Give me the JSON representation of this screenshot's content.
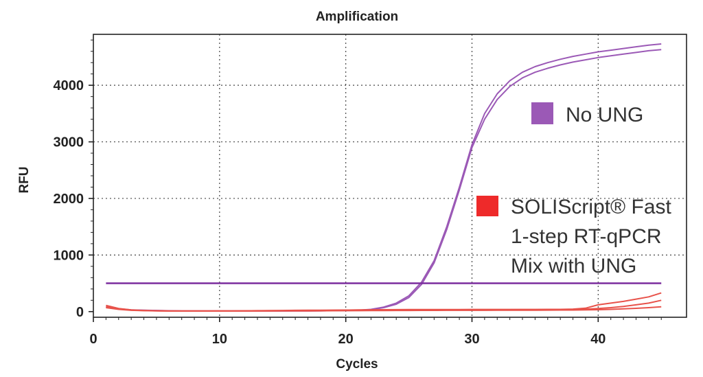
{
  "chart_data": {
    "type": "line",
    "title": "Amplification",
    "xlabel": "Cycles",
    "ylabel": "RFU",
    "xlim": [
      0,
      47
    ],
    "ylim": [
      -100,
      4900
    ],
    "xticks": [
      0,
      10,
      20,
      30,
      40
    ],
    "yticks": [
      0,
      1000,
      2000,
      3000,
      4000
    ],
    "grid": true,
    "threshold": {
      "value": 500,
      "color": "#7b2d9e"
    },
    "series": [
      {
        "name": "No UNG",
        "group": "purple",
        "color": "#9b59b6",
        "x": [
          1,
          2,
          3,
          4,
          5,
          6,
          7,
          8,
          9,
          10,
          11,
          12,
          13,
          14,
          15,
          16,
          17,
          18,
          19,
          20,
          21,
          22,
          23,
          24,
          25,
          26,
          27,
          28,
          29,
          30,
          31,
          32,
          33,
          34,
          35,
          36,
          37,
          38,
          39,
          40,
          41,
          42,
          43,
          44,
          45
        ],
        "y": [
          90,
          50,
          30,
          25,
          20,
          15,
          10,
          10,
          10,
          10,
          10,
          10,
          10,
          10,
          10,
          12,
          12,
          14,
          16,
          20,
          25,
          40,
          80,
          150,
          280,
          520,
          900,
          1500,
          2200,
          2950,
          3500,
          3850,
          4080,
          4230,
          4330,
          4400,
          4460,
          4510,
          4550,
          4590,
          4620,
          4650,
          4680,
          4710,
          4730
        ]
      },
      {
        "name": "No UNG",
        "group": "purple",
        "color": "#9b59b6",
        "x": [
          1,
          2,
          3,
          4,
          5,
          6,
          7,
          8,
          9,
          10,
          11,
          12,
          13,
          14,
          15,
          16,
          17,
          18,
          19,
          20,
          21,
          22,
          23,
          24,
          25,
          26,
          27,
          28,
          29,
          30,
          31,
          32,
          33,
          34,
          35,
          36,
          37,
          38,
          39,
          40,
          41,
          42,
          43,
          44,
          45
        ],
        "y": [
          80,
          45,
          28,
          22,
          18,
          14,
          10,
          10,
          10,
          10,
          10,
          10,
          10,
          10,
          10,
          12,
          12,
          14,
          16,
          18,
          22,
          35,
          70,
          130,
          250,
          480,
          860,
          1450,
          2150,
          2900,
          3400,
          3750,
          3980,
          4130,
          4230,
          4300,
          4360,
          4410,
          4450,
          4490,
          4520,
          4550,
          4580,
          4610,
          4630
        ]
      },
      {
        "name": "SOLIScript® Fast 1-step RT-qPCR Mix with UNG",
        "group": "red",
        "color": "#e8524a",
        "x": [
          1,
          2,
          3,
          4,
          5,
          6,
          7,
          8,
          9,
          10,
          11,
          12,
          13,
          14,
          15,
          16,
          17,
          18,
          19,
          20,
          21,
          22,
          23,
          24,
          25,
          26,
          27,
          28,
          29,
          30,
          31,
          32,
          33,
          34,
          35,
          36,
          37,
          38,
          39,
          40,
          41,
          42,
          43,
          44,
          45
        ],
        "y": [
          110,
          55,
          30,
          20,
          15,
          10,
          10,
          10,
          10,
          12,
          12,
          14,
          16,
          18,
          20,
          22,
          24,
          25,
          26,
          28,
          30,
          32,
          34,
          35,
          36,
          36,
          37,
          37,
          37,
          38,
          38,
          38,
          38,
          38,
          38,
          39,
          40,
          45,
          60,
          120,
          150,
          180,
          220,
          260,
          330
        ]
      },
      {
        "name": "SOLIScript® Fast 1-step RT-qPCR Mix with UNG",
        "group": "red",
        "color": "#e8524a",
        "x": [
          1,
          2,
          3,
          4,
          5,
          6,
          7,
          8,
          9,
          10,
          11,
          12,
          13,
          14,
          15,
          16,
          17,
          18,
          19,
          20,
          21,
          22,
          23,
          24,
          25,
          26,
          27,
          28,
          29,
          30,
          31,
          32,
          33,
          34,
          35,
          36,
          37,
          38,
          39,
          40,
          41,
          42,
          43,
          44,
          45
        ],
        "y": [
          85,
          48,
          26,
          18,
          14,
          10,
          10,
          10,
          10,
          11,
          11,
          12,
          13,
          14,
          15,
          16,
          18,
          20,
          22,
          24,
          26,
          28,
          30,
          31,
          32,
          32,
          33,
          33,
          33,
          34,
          34,
          34,
          34,
          35,
          35,
          35,
          36,
          38,
          42,
          55,
          70,
          90,
          120,
          150,
          200
        ]
      },
      {
        "name": "SOLIScript® Fast 1-step RT-qPCR Mix with UNG",
        "group": "red",
        "color": "#e8524a",
        "x": [
          1,
          2,
          3,
          4,
          5,
          6,
          7,
          8,
          9,
          10,
          11,
          12,
          13,
          14,
          15,
          16,
          17,
          18,
          19,
          20,
          21,
          22,
          23,
          24,
          25,
          26,
          27,
          28,
          29,
          30,
          31,
          32,
          33,
          34,
          35,
          36,
          37,
          38,
          39,
          40,
          41,
          42,
          43,
          44,
          45
        ],
        "y": [
          70,
          40,
          22,
          16,
          12,
          10,
          10,
          10,
          10,
          10,
          10,
          10,
          11,
          11,
          12,
          12,
          13,
          14,
          15,
          16,
          17,
          18,
          19,
          20,
          20,
          21,
          21,
          22,
          22,
          23,
          23,
          24,
          24,
          25,
          25,
          26,
          27,
          28,
          30,
          34,
          40,
          48,
          58,
          70,
          85
        ]
      }
    ],
    "legend": [
      {
        "label": "No UNG",
        "color": "#9b59b6"
      },
      {
        "lines": [
          "SOLIScript® Fast",
          "1-step RT-qPCR",
          "Mix with UNG"
        ],
        "color": "#ee2a2a"
      }
    ]
  }
}
